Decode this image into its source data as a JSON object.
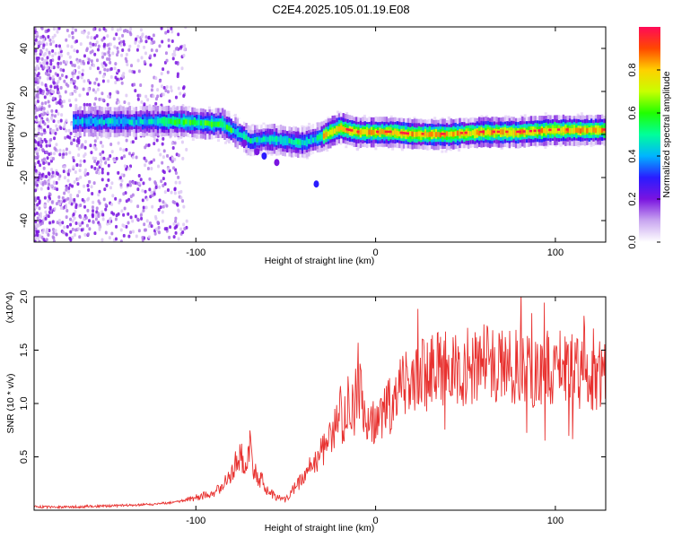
{
  "figure": {
    "title": "C2E4.2025.105.01.19.E08"
  },
  "chart_data": [
    {
      "type": "heatmap",
      "title": "C2E4.2025.105.01.19.E08",
      "xlabel": "Height of straight line (km)",
      "ylabel": "Frequency (Hz)",
      "xlim": [
        -190,
        128
      ],
      "ylim": [
        -50,
        50
      ],
      "xticks": [
        -100,
        0,
        100
      ],
      "yticks": [
        -40,
        -20,
        0,
        20,
        40
      ],
      "colorbar": {
        "label": "Normalized spectral amplitude",
        "range": [
          0,
          1
        ],
        "ticks": [
          0.0,
          0.2,
          0.4,
          0.6,
          0.8
        ],
        "tick_labels": [
          "0.0",
          "0.2",
          "0.4",
          "0.6",
          "0.8"
        ],
        "colormap": [
          "#ffffff",
          "#c9a6f0",
          "#7a14e0",
          "#2a1cff",
          "#00b4ff",
          "#00ff9a",
          "#20ff00",
          "#c8ff00",
          "#ffd000",
          "#ff4800",
          "#ff0a58"
        ]
      },
      "ridge_frequency": {
        "x": [
          -165,
          -150,
          -130,
          -110,
          -95,
          -85,
          -80,
          -75,
          -70,
          -60,
          -50,
          -40,
          -30,
          -25,
          -20,
          -15,
          -10,
          0,
          10,
          20,
          40,
          60,
          80,
          100,
          128
        ],
        "y": [
          6,
          6,
          6,
          6,
          5,
          5,
          2,
          0,
          -3,
          -2,
          -3,
          -4,
          -1,
          1,
          3,
          2,
          1,
          1,
          1,
          0,
          0,
          1,
          1,
          2,
          2
        ]
      },
      "grid": false
    },
    {
      "type": "line",
      "xlabel": "Height of straight line (km)",
      "ylabel": "SNR (10 * v/v)",
      "y_multiplier": "(x10^4)",
      "xlim": [
        -190,
        128
      ],
      "ylim": [
        0,
        2.0
      ],
      "xticks": [
        -100,
        0,
        100
      ],
      "yticks": [
        0.5,
        1.0,
        1.5,
        2.0
      ],
      "series": [
        {
          "color": "#e8312f",
          "x": [
            -190,
            -170,
            -150,
            -130,
            -120,
            -110,
            -100,
            -95,
            -90,
            -85,
            -80,
            -78,
            -75,
            -72,
            -70,
            -68,
            -65,
            -62,
            -60,
            -55,
            -50,
            -45,
            -40,
            -35,
            -30,
            -25,
            -20,
            -18,
            -15,
            -12,
            -10,
            -5,
            0,
            5,
            10,
            15,
            20,
            25,
            30,
            40,
            50,
            60,
            70,
            80,
            90,
            100,
            110,
            120,
            128
          ],
          "y": [
            0.03,
            0.03,
            0.04,
            0.05,
            0.06,
            0.08,
            0.12,
            0.14,
            0.17,
            0.22,
            0.35,
            0.45,
            0.5,
            0.42,
            0.6,
            0.38,
            0.3,
            0.25,
            0.18,
            0.12,
            0.1,
            0.22,
            0.3,
            0.45,
            0.55,
            0.7,
            0.95,
            0.8,
            1.05,
            0.9,
            1.25,
            0.85,
            0.85,
            0.95,
            1.0,
            1.15,
            1.2,
            1.25,
            1.3,
            1.35,
            1.35,
            1.4,
            1.3,
            1.35,
            1.3,
            1.35,
            1.3,
            1.28,
            1.25
          ]
        }
      ],
      "grid": false
    }
  ]
}
